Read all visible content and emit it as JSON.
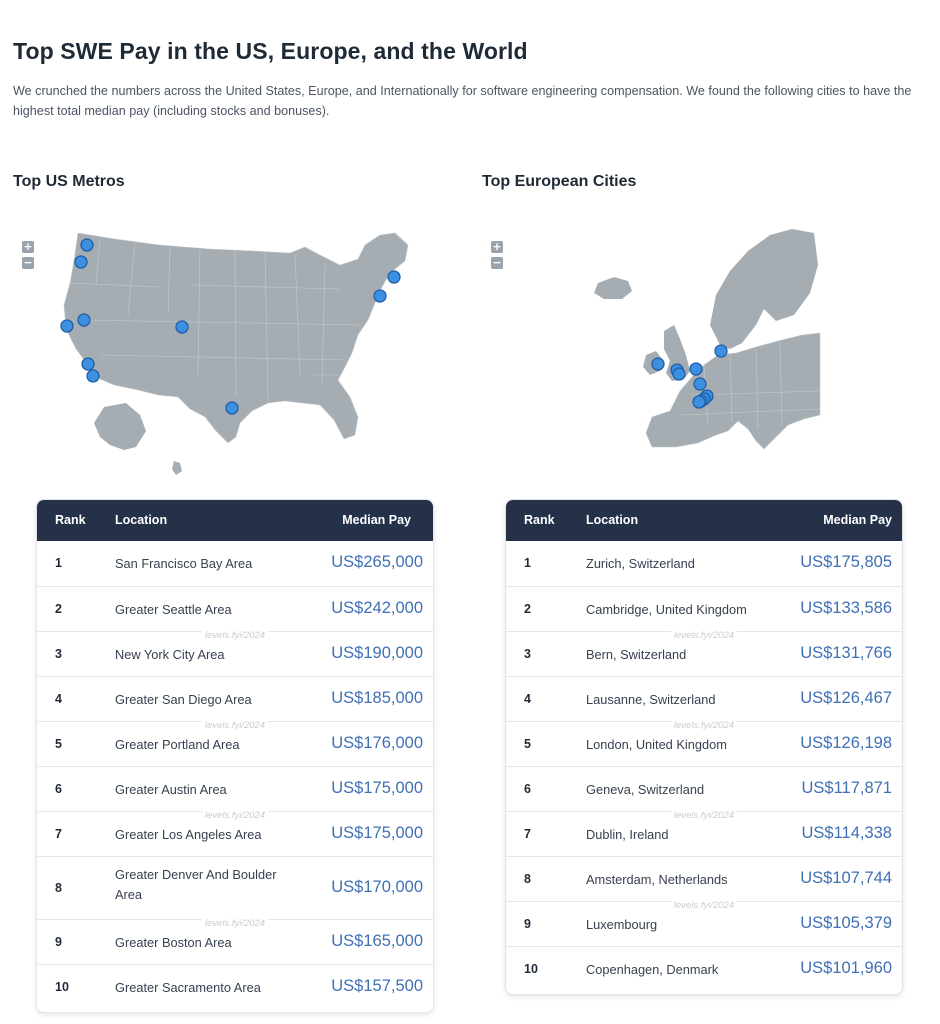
{
  "page": {
    "title": "Top SWE Pay in the US, Europe, and the World",
    "intro": "We crunched the numbers across the United States, Europe, and Internationally for software engineering compensation. We found the following cities to have the highest total median pay (including stocks and bonuses)."
  },
  "map_controls": {
    "zoom_in": "+",
    "zoom_out": "−"
  },
  "colors": {
    "header_bg": "#243149",
    "pay_text": "#3f6fb5",
    "map_land": "#a5adb3",
    "marker_fill": "#3d8fe0",
    "marker_stroke": "#1f5fa8"
  },
  "watermark": "levels.fyi/2024",
  "us": {
    "title": "Top US Metros",
    "headers": {
      "rank": "Rank",
      "location": "Location",
      "pay": "Median Pay"
    },
    "rows": [
      {
        "rank": "1",
        "location": "San Francisco Bay Area",
        "pay": "US$265,000"
      },
      {
        "rank": "2",
        "location": "Greater Seattle Area",
        "pay": "US$242,000"
      },
      {
        "rank": "3",
        "location": "New York City Area",
        "pay": "US$190,000"
      },
      {
        "rank": "4",
        "location": "Greater San Diego Area",
        "pay": "US$185,000"
      },
      {
        "rank": "5",
        "location": "Greater Portland Area",
        "pay": "US$176,000"
      },
      {
        "rank": "6",
        "location": "Greater Austin Area",
        "pay": "US$175,000"
      },
      {
        "rank": "7",
        "location": "Greater Los Angeles Area",
        "pay": "US$175,000"
      },
      {
        "rank": "8",
        "location": "Greater Denver And Boulder Area",
        "pay": "US$170,000"
      },
      {
        "rank": "9",
        "location": "Greater Boston Area",
        "pay": "US$165,000"
      },
      {
        "rank": "10",
        "location": "Greater Sacramento Area",
        "pay": "US$157,500"
      }
    ]
  },
  "eu": {
    "title": "Top European Cities",
    "headers": {
      "rank": "Rank",
      "location": "Location",
      "pay": "Median Pay"
    },
    "rows": [
      {
        "rank": "1",
        "location": "Zurich, Switzerland",
        "pay": "US$175,805"
      },
      {
        "rank": "2",
        "location": "Cambridge, United Kingdom",
        "pay": "US$133,586"
      },
      {
        "rank": "3",
        "location": "Bern, Switzerland",
        "pay": "US$131,766"
      },
      {
        "rank": "4",
        "location": "Lausanne, Switzerland",
        "pay": "US$126,467"
      },
      {
        "rank": "5",
        "location": "London, United Kingdom",
        "pay": "US$126,198"
      },
      {
        "rank": "6",
        "location": "Geneva, Switzerland",
        "pay": "US$117,871"
      },
      {
        "rank": "7",
        "location": "Dublin, Ireland",
        "pay": "US$114,338"
      },
      {
        "rank": "8",
        "location": "Amsterdam, Netherlands",
        "pay": "US$107,744"
      },
      {
        "rank": "9",
        "location": "Luxembourg",
        "pay": "US$105,379"
      },
      {
        "rank": "10",
        "location": "Copenhagen, Denmark",
        "pay": "US$101,960"
      }
    ]
  }
}
